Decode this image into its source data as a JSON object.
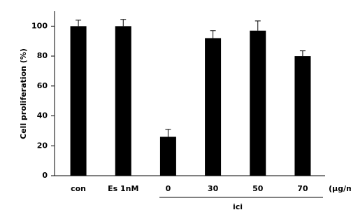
{
  "chart_data": {
    "type": "bar",
    "y_label": "Cell proliferation  (%)",
    "categories": [
      "con",
      "Es 1nM",
      "0",
      "30",
      "50",
      "70"
    ],
    "values": [
      100,
      100,
      26,
      92,
      97,
      80
    ],
    "errors": [
      4,
      4.5,
      5,
      5,
      6.5,
      3.5
    ],
    "color": "#000000",
    "unit_label": "(μg/ml)",
    "group_label": "ici",
    "ylim": [
      0,
      110
    ],
    "yticks": [
      0,
      20,
      40,
      60,
      80,
      100
    ]
  }
}
